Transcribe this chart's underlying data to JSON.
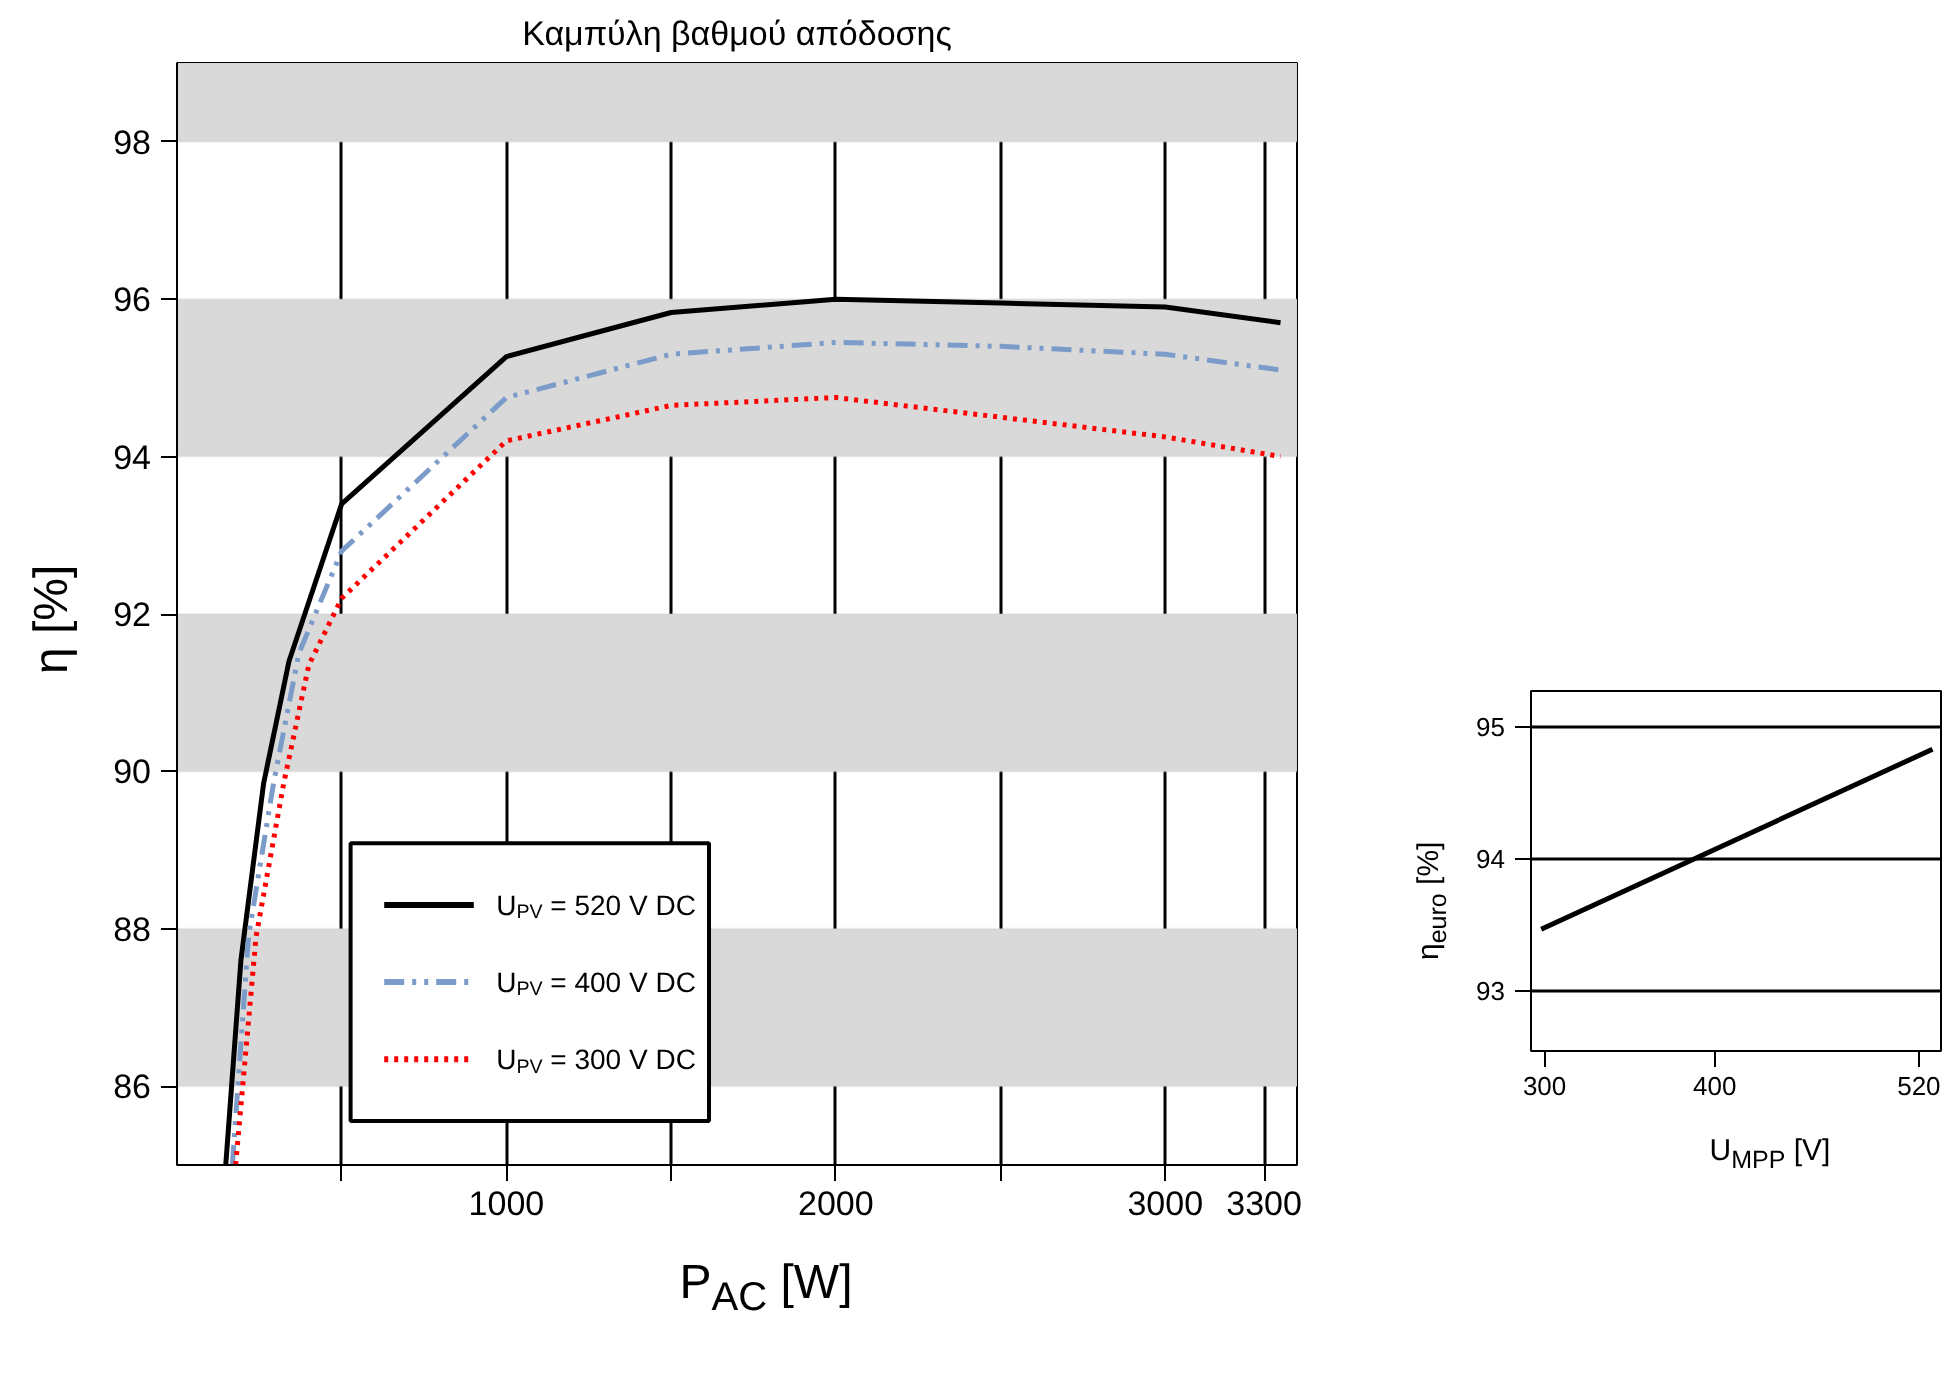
{
  "chart_data": [
    {
      "type": "line",
      "title": "Καμπύλη βαθμού απόδοσης",
      "xlabel": "P$_{AC}$ [W]",
      "ylabel": "η [%]",
      "xlim": [
        0,
        3400
      ],
      "ylim": [
        85,
        99
      ],
      "xticks": [
        {
          "value": 500,
          "label": null
        },
        1000,
        {
          "value": 1500,
          "label": null
        },
        2000,
        {
          "value": 2500,
          "label": null
        },
        3000,
        3300
      ],
      "yticks": [
        86,
        88,
        90,
        92,
        94,
        96,
        98
      ],
      "grid": "x",
      "legend": "bottom left",
      "bands": [
        {
          "axis": "y",
          "from": 86,
          "to": 88,
          "color": "#d9d9d9"
        },
        {
          "axis": "y",
          "from": 90,
          "to": 92,
          "color": "#d9d9d9"
        },
        {
          "axis": "y",
          "from": 94,
          "to": 96,
          "color": "#d9d9d9"
        },
        {
          "axis": "y",
          "from": 98,
          "to": 99,
          "color": "#d9d9d9"
        }
      ],
      "series": [
        {
          "name": "U$_{PV}$ = 520 V DC",
          "color": "#000000",
          "line_style": "solid",
          "x": [
            148,
            194,
            263,
            340,
            500,
            1000,
            1500,
            2000,
            2500,
            3000,
            3350
          ],
          "values": [
            85,
            87.6,
            89.85,
            91.4,
            93.4,
            95.27,
            95.83,
            96.0,
            95.95,
            95.9,
            95.7
          ]
        },
        {
          "name": "U$_{PV}$ = 400 V DC",
          "color": "#7b9cc9",
          "line_style": "dashed",
          "x": [
            168,
            217,
            293,
            370,
            500,
            1000,
            1500,
            2000,
            2500,
            3000,
            3350
          ],
          "values": [
            85,
            87.9,
            89.85,
            91.5,
            92.8,
            94.75,
            95.3,
            95.45,
            95.4,
            95.3,
            95.1
          ]
        },
        {
          "name": "U$_{PV}$ = 300 V DC",
          "color": "#ff0000",
          "line_style": "dotted",
          "x": [
            178,
            240,
            324,
            400,
            500,
            1000,
            1500,
            2000,
            2500,
            3000,
            3350
          ],
          "values": [
            85,
            87.9,
            89.85,
            91.35,
            92.2,
            94.2,
            94.65,
            94.75,
            94.5,
            94.25,
            94.0
          ]
        }
      ]
    },
    {
      "type": "line",
      "xlabel": "U$_{MPP}$ [V]",
      "ylabel": "η$_{euro}$ [%]",
      "xlim": [
        292,
        533
      ],
      "ylim": [
        92.55,
        95.27
      ],
      "xticks": [
        300,
        400,
        520
      ],
      "yticks": [
        93,
        94,
        95
      ],
      "grid": "y",
      "series": [
        {
          "color": "#000000",
          "x": [
            298,
            528
          ],
          "values": [
            93.47,
            94.83
          ]
        }
      ]
    }
  ]
}
